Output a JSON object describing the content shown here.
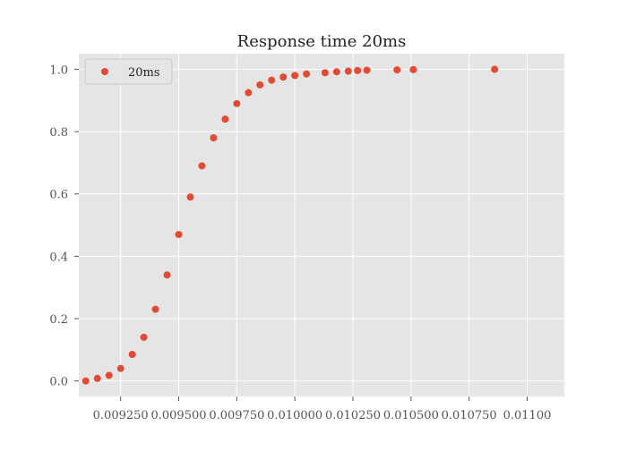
{
  "chart_data": {
    "type": "scatter",
    "title": "Response time 20ms",
    "xlabel": "",
    "ylabel": "",
    "xlim": [
      0.00907,
      0.01116
    ],
    "ylim": [
      -0.05,
      1.05
    ],
    "x_ticks": [
      0.00925,
      0.0095,
      0.00975,
      0.01,
      0.01025,
      0.0105,
      0.01075,
      0.011
    ],
    "x_tick_labels": [
      "0.009250",
      "0.009500",
      "0.009750",
      "0.010000",
      "0.010250",
      "0.010500",
      "0.010750",
      "0.01100"
    ],
    "y_ticks": [
      0.0,
      0.2,
      0.4,
      0.6,
      0.8,
      1.0
    ],
    "y_tick_labels": [
      "0.0",
      "0.2",
      "0.4",
      "0.6",
      "0.8",
      "1.0"
    ],
    "grid": true,
    "legend_position": "top-left",
    "color": "#e24a33",
    "series": [
      {
        "name": "20ms",
        "x": [
          0.0091,
          0.00915,
          0.0092,
          0.00925,
          0.0093,
          0.00935,
          0.0094,
          0.00945,
          0.0095,
          0.00955,
          0.0096,
          0.00965,
          0.0097,
          0.00975,
          0.0098,
          0.00985,
          0.0099,
          0.00995,
          0.01,
          0.01005,
          0.01013,
          0.01018,
          0.01023,
          0.01027,
          0.01031,
          0.01044,
          0.01051,
          0.01086
        ],
        "y": [
          0.0,
          0.008,
          0.018,
          0.04,
          0.085,
          0.14,
          0.23,
          0.34,
          0.47,
          0.59,
          0.69,
          0.78,
          0.84,
          0.89,
          0.925,
          0.95,
          0.965,
          0.975,
          0.98,
          0.985,
          0.989,
          0.992,
          0.994,
          0.996,
          0.997,
          0.998,
          0.999,
          1.0
        ]
      }
    ]
  }
}
